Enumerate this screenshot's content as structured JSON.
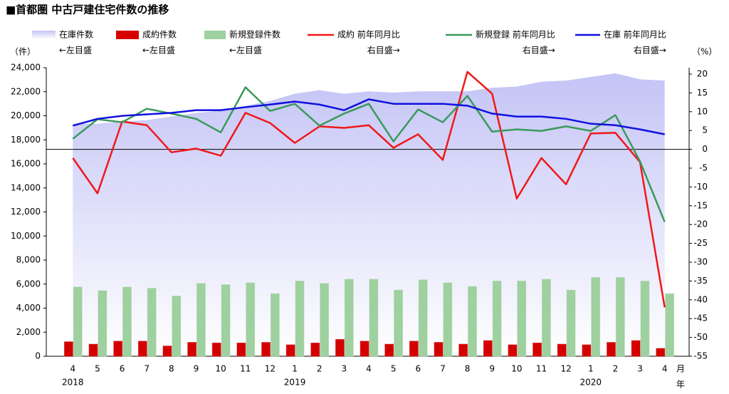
{
  "chart_data": {
    "type": "combo",
    "title": "■首都圏 中古戸建住宅件数の推移",
    "y_unit": "（件）",
    "y2_unit": "（%）",
    "x_month_unit": "月",
    "x_year_unit": "年",
    "categories": [
      "4",
      "5",
      "6",
      "7",
      "8",
      "9",
      "10",
      "11",
      "12",
      "1",
      "2",
      "3",
      "4",
      "5",
      "6",
      "7",
      "8",
      "9",
      "10",
      "11",
      "12",
      "1",
      "2",
      "3",
      "4"
    ],
    "year_labels": [
      "2018",
      null,
      null,
      null,
      null,
      null,
      null,
      null,
      null,
      "2019",
      null,
      null,
      null,
      null,
      null,
      null,
      null,
      null,
      null,
      null,
      null,
      "2020",
      null,
      null,
      null
    ],
    "ylim": [
      0,
      24000
    ],
    "yticks": [
      {
        "value": 0,
        "label": "0"
      },
      {
        "value": 2000,
        "label": "2,000"
      },
      {
        "value": 4000,
        "label": "4,000"
      },
      {
        "value": 6000,
        "label": "6,000"
      },
      {
        "value": 8000,
        "label": "8,000"
      },
      {
        "value": 10000,
        "label": "10,000"
      },
      {
        "value": 12000,
        "label": "12,000"
      },
      {
        "value": 14000,
        "label": "14,000"
      },
      {
        "value": 16000,
        "label": "16,000"
      },
      {
        "value": 18000,
        "label": "18,000"
      },
      {
        "value": 20000,
        "label": "20,000"
      },
      {
        "value": 22000,
        "label": "22,000"
      },
      {
        "value": 24000,
        "label": "24,000"
      }
    ],
    "y2lim": [
      -55,
      21.7
    ],
    "y2ticks": [
      20,
      15,
      10,
      5,
      0,
      -5,
      -10,
      -15,
      -20,
      -25,
      -30,
      -35,
      -40,
      -45,
      -50,
      -55
    ],
    "zero_line": true,
    "series": [
      {
        "name": "在庫件数",
        "legend_note": "←左目盛",
        "kind": "area",
        "color": "#c4c4f6",
        "values": [
          19300,
          19300,
          19500,
          19600,
          19900,
          20200,
          20400,
          20800,
          21200,
          21800,
          22100,
          21800,
          22000,
          21900,
          22000,
          22000,
          22000,
          22300,
          22400,
          22800,
          22900,
          23200,
          23500,
          23000,
          22900
        ]
      },
      {
        "name": "成約件数",
        "legend_note": "←左目盛",
        "kind": "bar",
        "color": "#d40000",
        "values": [
          1200,
          1000,
          1250,
          1250,
          850,
          1150,
          1100,
          1100,
          1150,
          950,
          1100,
          1400,
          1250,
          1000,
          1250,
          1150,
          1000,
          1300,
          950,
          1100,
          1000,
          950,
          1150,
          1300,
          650
        ]
      },
      {
        "name": "新規登録件数",
        "legend_note": "←左目盛",
        "kind": "bar",
        "color": "#9fd09f",
        "values": [
          5750,
          5450,
          5750,
          5650,
          5000,
          6050,
          5950,
          6100,
          5200,
          6250,
          6050,
          6400,
          6400,
          5500,
          6350,
          6100,
          5800,
          6250,
          6250,
          6400,
          5500,
          6550,
          6550,
          6250,
          5200
        ]
      },
      {
        "name": "成約 前年同月比",
        "legend_note": "右目盛→",
        "kind": "line",
        "axis": "y2",
        "color": "#f01818",
        "values": [
          -2.3,
          -11.7,
          7.4,
          6.4,
          -0.8,
          0.2,
          -1.7,
          9.7,
          7.0,
          1.7,
          6.1,
          5.7,
          6.4,
          0.4,
          4.0,
          -2.8,
          20.6,
          14.8,
          -13.1,
          -2.3,
          -9.3,
          4.2,
          4.4,
          -3.4,
          -42.0
        ]
      },
      {
        "name": "新規登録 前年同月比",
        "legend_note": "右目盛→",
        "kind": "line",
        "axis": "y2",
        "color": "#3a9a5a",
        "values": [
          2.8,
          8.0,
          7.2,
          10.8,
          9.5,
          8.1,
          4.5,
          16.5,
          10.2,
          12.1,
          6.3,
          9.5,
          12.1,
          2.1,
          10.6,
          7.2,
          14.2,
          4.7,
          5.3,
          4.9,
          6.1,
          4.9,
          9.1,
          -3.2,
          -19.3
        ]
      },
      {
        "name": "在庫 前年同月比",
        "legend_note": "右目盛→",
        "kind": "line",
        "axis": "y2",
        "color": "#1010e0",
        "values": [
          6.3,
          8.1,
          8.9,
          9.3,
          9.7,
          10.4,
          10.4,
          11.2,
          11.9,
          12.7,
          11.9,
          10.4,
          13.3,
          12.1,
          12.1,
          12.1,
          11.6,
          9.5,
          8.7,
          8.7,
          8.1,
          6.8,
          6.4,
          5.3,
          4.0
        ]
      }
    ]
  }
}
